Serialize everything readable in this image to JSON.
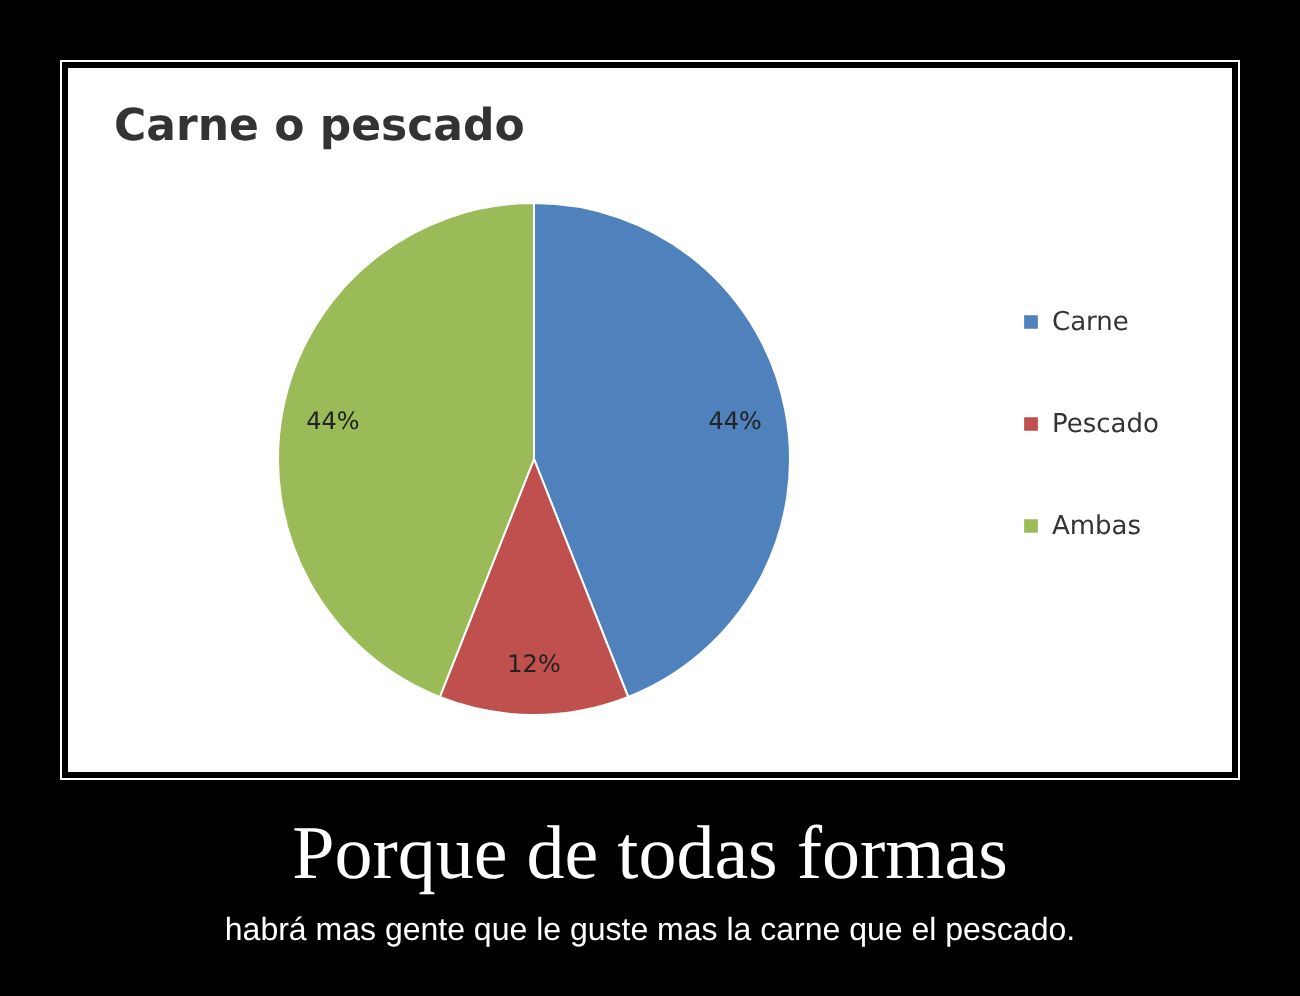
{
  "chart_data": {
    "type": "pie",
    "title": "Carne o pescado",
    "categories": [
      "Carne",
      "Pescado",
      "Ambas"
    ],
    "values": [
      44,
      12,
      44
    ],
    "colors": [
      "#4f81bd",
      "#c0504d",
      "#9bbb59"
    ],
    "value_labels": [
      "44%",
      "12%",
      "44%"
    ],
    "legend": "right",
    "annotations": [
      "Porque de todas formas",
      "habrá mas gente que le guste mas la carne que el pescado."
    ]
  }
}
